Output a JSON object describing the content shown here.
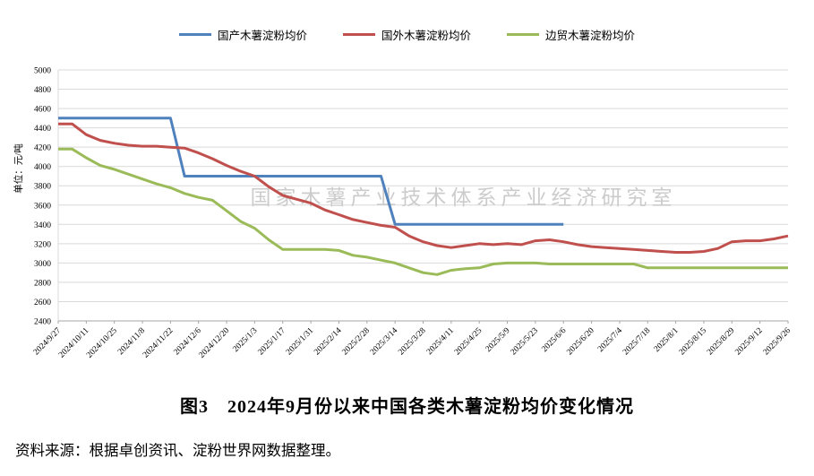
{
  "chart_data": {
    "type": "line",
    "x": [
      "2024/9/27",
      "2024/10/4",
      "2024/10/11",
      "2024/10/18",
      "2024/10/25",
      "2024/11/1",
      "2024/11/8",
      "2024/11/15",
      "2024/11/22",
      "2024/11/29",
      "2024/12/6",
      "2024/12/13",
      "2024/12/20",
      "2024/12/27",
      "2025/1/3",
      "2025/1/10",
      "2025/1/17",
      "2025/1/24",
      "2025/1/31",
      "2025/2/7",
      "2025/2/14",
      "2025/2/21",
      "2025/2/28",
      "2025/3/7",
      "2025/3/14",
      "2025/3/21",
      "2025/3/28",
      "2025/4/4",
      "2025/4/11",
      "2025/4/18",
      "2025/4/25",
      "2025/5/2",
      "2025/5/9",
      "2025/5/16",
      "2025/5/23",
      "2025/5/30",
      "2025/6/6",
      "2025/6/13",
      "2025/6/20",
      "2025/6/27",
      "2025/7/4",
      "2025/7/11",
      "2025/7/18",
      "2025/7/25",
      "2025/8/1",
      "2025/8/8",
      "2025/8/15",
      "2025/8/22",
      "2025/8/29",
      "2025/9/5",
      "2025/9/12",
      "2025/9/19",
      "2025/9/26"
    ],
    "x_label_every": 2,
    "series": [
      {
        "name": "国产木薯淀粉均价",
        "color": "#4F81BD",
        "values": [
          4500,
          4500,
          4500,
          4500,
          4500,
          4500,
          4500,
          4500,
          4500,
          3900,
          3900,
          3900,
          3900,
          3900,
          3900,
          3900,
          3900,
          3900,
          3900,
          3900,
          3900,
          3900,
          3900,
          3900,
          3400,
          3400,
          3400,
          3400,
          3400,
          3400,
          3400,
          3400,
          3400,
          3400,
          3400,
          3400,
          3400,
          null,
          null,
          null,
          null,
          null,
          null,
          null,
          null,
          null,
          null,
          null,
          null,
          null,
          null,
          null,
          null
        ]
      },
      {
        "name": "国外木薯淀粉均价",
        "color": "#C0504D",
        "values": [
          4440,
          4440,
          4330,
          4270,
          4240,
          4220,
          4210,
          4210,
          4200,
          4190,
          4140,
          4080,
          4010,
          3950,
          3900,
          3790,
          3700,
          3660,
          3620,
          3550,
          3500,
          3450,
          3420,
          3390,
          3370,
          3280,
          3220,
          3180,
          3160,
          3180,
          3200,
          3190,
          3200,
          3190,
          3230,
          3240,
          3220,
          3190,
          3170,
          3160,
          3150,
          3140,
          3130,
          3120,
          3110,
          3110,
          3120,
          3150,
          3220,
          3230,
          3230,
          3250,
          3280
        ]
      },
      {
        "name": "边贸木薯淀粉均价",
        "color": "#9BBB59",
        "values": [
          4180,
          4180,
          4090,
          4010,
          3970,
          3920,
          3870,
          3820,
          3780,
          3720,
          3680,
          3650,
          3540,
          3430,
          3360,
          3240,
          3140,
          3140,
          3140,
          3140,
          3130,
          3080,
          3060,
          3030,
          3000,
          2950,
          2900,
          2880,
          2925,
          2940,
          2950,
          2990,
          3000,
          3000,
          3000,
          2990,
          2990,
          2990,
          2990,
          2990,
          2990,
          2990,
          2950,
          2950,
          2950,
          2950,
          2950,
          2950,
          2950,
          2950,
          2950,
          2950,
          2950
        ]
      }
    ],
    "ylabel": "单位：元/吨",
    "ylim": [
      2400,
      5000
    ],
    "ytick_step": 200,
    "grid": true,
    "legend_position": "top",
    "watermark": "国家木薯产业技术体系产业经济研究室",
    "gridline_color": "#D9D9D9",
    "axis_color": "#A6A6A6",
    "tick_label_color": "#000000",
    "watermark_color": "#CCCCCC",
    "line_width": 3
  },
  "caption": {
    "title": "图3　2024年9月份以来中国各类木薯淀粉均价变化情况"
  },
  "source": {
    "text": "资料来源：根据卓创资讯、淀粉世界网数据整理。"
  }
}
